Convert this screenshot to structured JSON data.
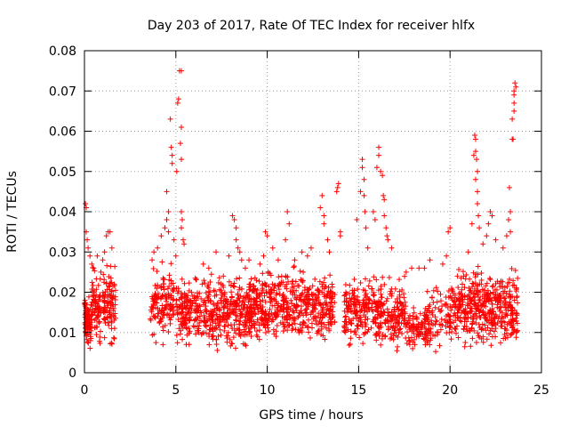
{
  "chart_data": {
    "type": "scatter",
    "title": "Day 203 of 2017, Rate Of TEC Index for receiver hlfx",
    "xlabel": "GPS time / hours",
    "ylabel": "ROTI / TECUs",
    "xlim": [
      0,
      25
    ],
    "ylim": [
      0,
      0.08
    ],
    "x_ticks": [
      0,
      5,
      10,
      15,
      20,
      25
    ],
    "y_ticks": [
      0,
      0.01,
      0.02,
      0.03,
      0.04,
      0.05,
      0.06,
      0.07,
      0.08
    ],
    "x_tick_labels": [
      "0",
      "5",
      "10",
      "15",
      "20",
      "25"
    ],
    "y_tick_labels": [
      "0",
      "0.01",
      "0.02",
      "0.03",
      "0.04",
      "0.05",
      "0.06",
      "0.07",
      "0.08"
    ],
    "grid": true,
    "marker": "+",
    "series_color": "#ff0000",
    "clusters": [
      {
        "x_range": [
          0.0,
          0.4
        ],
        "y_range": [
          0.004,
          0.022
        ],
        "count": 90
      },
      {
        "x_range": [
          0.4,
          0.9
        ],
        "y_range": [
          0.005,
          0.028
        ],
        "count": 70
      },
      {
        "x_range": [
          1.0,
          1.7
        ],
        "y_range": [
          0.004,
          0.03
        ],
        "count": 100
      },
      {
        "x_range": [
          3.6,
          4.9
        ],
        "y_range": [
          0.005,
          0.03
        ],
        "count": 130
      },
      {
        "x_range": [
          5.0,
          9.2
        ],
        "y_range": [
          0.004,
          0.026
        ],
        "count": 480
      },
      {
        "x_range": [
          9.0,
          13.7
        ],
        "y_range": [
          0.005,
          0.028
        ],
        "count": 520
      },
      {
        "x_range": [
          14.2,
          17.6
        ],
        "y_range": [
          0.004,
          0.026
        ],
        "count": 360
      },
      {
        "x_range": [
          17.6,
          18.8
        ],
        "y_range": [
          0.004,
          0.018
        ],
        "count": 80
      },
      {
        "x_range": [
          18.6,
          19.6
        ],
        "y_range": [
          0.004,
          0.024
        ],
        "count": 70
      },
      {
        "x_range": [
          19.7,
          20.4
        ],
        "y_range": [
          0.005,
          0.026
        ],
        "count": 60
      },
      {
        "x_range": [
          20.4,
          23.7
        ],
        "y_range": [
          0.004,
          0.028
        ],
        "count": 420
      }
    ],
    "points": [
      [
        0.05,
        0.042
      ],
      [
        0.1,
        0.041
      ],
      [
        0.1,
        0.035
      ],
      [
        0.15,
        0.033
      ],
      [
        0.2,
        0.031
      ],
      [
        0.3,
        0.029
      ],
      [
        0.4,
        0.027
      ],
      [
        0.5,
        0.026
      ],
      [
        0.7,
        0.029
      ],
      [
        0.9,
        0.025
      ],
      [
        1.0,
        0.028
      ],
      [
        1.1,
        0.03
      ],
      [
        1.2,
        0.034
      ],
      [
        1.3,
        0.035
      ],
      [
        1.4,
        0.035
      ],
      [
        1.5,
        0.031
      ],
      [
        3.7,
        0.028
      ],
      [
        3.8,
        0.03
      ],
      [
        4.0,
        0.031
      ],
      [
        4.2,
        0.034
      ],
      [
        4.4,
        0.036
      ],
      [
        4.5,
        0.045
      ],
      [
        4.5,
        0.038
      ],
      [
        4.6,
        0.04
      ],
      [
        4.6,
        0.035
      ],
      [
        4.7,
        0.063
      ],
      [
        4.75,
        0.056
      ],
      [
        4.8,
        0.054
      ],
      [
        4.8,
        0.052
      ],
      [
        4.9,
        0.033
      ],
      [
        5.0,
        0.029
      ],
      [
        5.05,
        0.05
      ],
      [
        5.1,
        0.067
      ],
      [
        5.15,
        0.068
      ],
      [
        5.2,
        0.075
      ],
      [
        5.3,
        0.075
      ],
      [
        5.3,
        0.061
      ],
      [
        5.25,
        0.057
      ],
      [
        5.3,
        0.053
      ],
      [
        5.3,
        0.04
      ],
      [
        5.35,
        0.038
      ],
      [
        5.3,
        0.036
      ],
      [
        5.4,
        0.033
      ],
      [
        5.45,
        0.032
      ],
      [
        6.5,
        0.027
      ],
      [
        6.8,
        0.026
      ],
      [
        7.2,
        0.03
      ],
      [
        7.6,
        0.024
      ],
      [
        7.9,
        0.029
      ],
      [
        8.1,
        0.039
      ],
      [
        8.2,
        0.038
      ],
      [
        8.3,
        0.036
      ],
      [
        8.3,
        0.033
      ],
      [
        8.4,
        0.031
      ],
      [
        8.5,
        0.03
      ],
      [
        8.6,
        0.028
      ],
      [
        8.8,
        0.026
      ],
      [
        9.0,
        0.028
      ],
      [
        9.6,
        0.027
      ],
      [
        9.8,
        0.029
      ],
      [
        9.9,
        0.035
      ],
      [
        10.0,
        0.034
      ],
      [
        10.3,
        0.031
      ],
      [
        10.6,
        0.028
      ],
      [
        11.0,
        0.033
      ],
      [
        11.1,
        0.04
      ],
      [
        11.2,
        0.037
      ],
      [
        11.5,
        0.028
      ],
      [
        11.9,
        0.03
      ],
      [
        12.2,
        0.029
      ],
      [
        12.4,
        0.031
      ],
      [
        12.9,
        0.041
      ],
      [
        13.0,
        0.044
      ],
      [
        13.1,
        0.039
      ],
      [
        13.1,
        0.037
      ],
      [
        13.3,
        0.033
      ],
      [
        13.4,
        0.03
      ],
      [
        13.8,
        0.045
      ],
      [
        13.85,
        0.046
      ],
      [
        13.9,
        0.047
      ],
      [
        14.0,
        0.035
      ],
      [
        14.0,
        0.034
      ],
      [
        14.9,
        0.038
      ],
      [
        15.1,
        0.045
      ],
      [
        15.2,
        0.051
      ],
      [
        15.2,
        0.053
      ],
      [
        15.3,
        0.048
      ],
      [
        15.3,
        0.044
      ],
      [
        15.35,
        0.04
      ],
      [
        15.4,
        0.036
      ],
      [
        15.5,
        0.031
      ],
      [
        15.8,
        0.04
      ],
      [
        15.9,
        0.038
      ],
      [
        16.0,
        0.051
      ],
      [
        16.1,
        0.056
      ],
      [
        16.1,
        0.054
      ],
      [
        16.2,
        0.05
      ],
      [
        16.3,
        0.049
      ],
      [
        16.35,
        0.044
      ],
      [
        16.4,
        0.043
      ],
      [
        16.4,
        0.039
      ],
      [
        16.5,
        0.036
      ],
      [
        16.55,
        0.034
      ],
      [
        16.6,
        0.033
      ],
      [
        16.8,
        0.031
      ],
      [
        17.6,
        0.025
      ],
      [
        17.9,
        0.026
      ],
      [
        18.3,
        0.026
      ],
      [
        18.6,
        0.026
      ],
      [
        18.9,
        0.028
      ],
      [
        19.6,
        0.027
      ],
      [
        19.8,
        0.029
      ],
      [
        19.9,
        0.035
      ],
      [
        20.0,
        0.036
      ],
      [
        20.4,
        0.024
      ],
      [
        21.0,
        0.03
      ],
      [
        21.2,
        0.037
      ],
      [
        21.3,
        0.054
      ],
      [
        21.35,
        0.059
      ],
      [
        21.4,
        0.058
      ],
      [
        21.4,
        0.055
      ],
      [
        21.45,
        0.053
      ],
      [
        21.5,
        0.05
      ],
      [
        21.4,
        0.048
      ],
      [
        21.5,
        0.045
      ],
      [
        21.5,
        0.042
      ],
      [
        21.55,
        0.039
      ],
      [
        21.6,
        0.036
      ],
      [
        21.8,
        0.032
      ],
      [
        22.0,
        0.034
      ],
      [
        22.1,
        0.037
      ],
      [
        22.2,
        0.04
      ],
      [
        22.3,
        0.039
      ],
      [
        22.5,
        0.033
      ],
      [
        22.9,
        0.031
      ],
      [
        23.1,
        0.034
      ],
      [
        23.2,
        0.038
      ],
      [
        23.25,
        0.046
      ],
      [
        23.3,
        0.04
      ],
      [
        23.3,
        0.035
      ],
      [
        23.4,
        0.058
      ],
      [
        23.45,
        0.058
      ],
      [
        23.4,
        0.063
      ],
      [
        23.5,
        0.065
      ],
      [
        23.5,
        0.067
      ],
      [
        23.5,
        0.069
      ],
      [
        23.5,
        0.07
      ],
      [
        23.55,
        0.072
      ],
      [
        23.6,
        0.071
      ]
    ]
  }
}
